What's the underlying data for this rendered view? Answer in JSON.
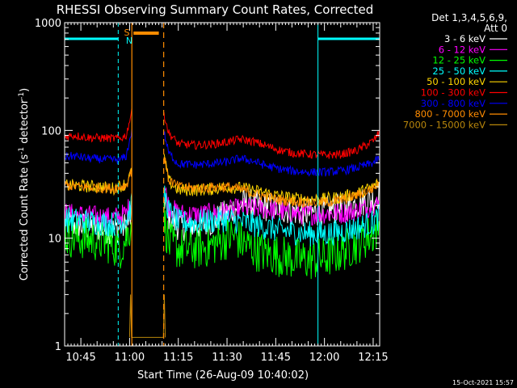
{
  "chart_data": {
    "type": "line",
    "title": "RHESSI Observing Summary Count Rates, Corrected",
    "xlabel": "Start Time (26-Aug-09 10:40:02)",
    "ylabel_parts": [
      "Corrected Count Rate (s",
      "-1",
      " detector",
      "-1",
      ")"
    ],
    "y_scale": "log",
    "ylim": [
      1,
      1000
    ],
    "xlim_minutes_after_1040": [
      0,
      97
    ],
    "x_ticks": [
      {
        "label": "10:45",
        "min": 5
      },
      {
        "label": "11:00",
        "min": 20
      },
      {
        "label": "11:15",
        "min": 35
      },
      {
        "label": "11:30",
        "min": 50
      },
      {
        "label": "11:45",
        "min": 65
      },
      {
        "label": "12:00",
        "min": 80
      },
      {
        "label": "12:15",
        "min": 95
      }
    ],
    "y_ticks": [
      {
        "label": "1",
        "value": 1
      },
      {
        "label": "10",
        "value": 10
      },
      {
        "label": "100",
        "value": 100
      },
      {
        "label": "1000",
        "value": 1000
      }
    ],
    "legend": {
      "header": [
        "Det 1,3,4,5,6,9,",
        "Att 0"
      ],
      "placement": "right",
      "entries": [
        {
          "label": "3 - 6 keV",
          "color": "#ffffff"
        },
        {
          "label": "6 - 12 keV",
          "color": "#ff00ff"
        },
        {
          "label": "12 - 25 keV",
          "color": "#00ff00"
        },
        {
          "label": "25 - 50 keV",
          "color": "#00ffff"
        },
        {
          "label": "50 - 100 keV",
          "color": "#ffd700"
        },
        {
          "label": "100 - 300 keV",
          "color": "#ff0000"
        },
        {
          "label": "300 - 800 keV",
          "color": "#0000ff"
        },
        {
          "label": "800 - 7000 keV",
          "color": "#ff8c00"
        },
        {
          "label": "7000 - 15000 keV",
          "color": "#b8860b"
        }
      ]
    },
    "gap_minutes": [
      20.7,
      30.5
    ],
    "segment_markers": {
      "saa_label": "S",
      "night_label": "N",
      "saa_bar_color": "#ff8c00",
      "night_bar_color": "#00ffff",
      "night_bars_minutes": [
        [
          0,
          16.5
        ],
        [
          78,
          97
        ]
      ],
      "saa_bar_minutes": [
        [
          21.2,
          29
        ]
      ],
      "cyan_lines_minutes": [
        0,
        16.5,
        78,
        97
      ],
      "orange_lines_minutes": [
        20.7,
        30.5
      ]
    },
    "series": [
      {
        "name": "3 - 6 keV",
        "color": "#ffffff",
        "points": [
          [
            0,
            14
          ],
          [
            5,
            13
          ],
          [
            10,
            12.5
          ],
          [
            15,
            12
          ],
          [
            19,
            13
          ],
          [
            20.5,
            16
          ],
          [
            30.5,
            25
          ],
          [
            32,
            16
          ],
          [
            35,
            13
          ],
          [
            40,
            13
          ],
          [
            45,
            14
          ],
          [
            50,
            17
          ],
          [
            55,
            21
          ],
          [
            60,
            20
          ],
          [
            65,
            19
          ],
          [
            70,
            18
          ],
          [
            75,
            17
          ],
          [
            80,
            18
          ],
          [
            85,
            19
          ],
          [
            90,
            21
          ],
          [
            95,
            23
          ],
          [
            97,
            26
          ]
        ]
      },
      {
        "name": "6 - 12 keV",
        "color": "#ff00ff",
        "points": [
          [
            0,
            17
          ],
          [
            5,
            16.5
          ],
          [
            10,
            16
          ],
          [
            15,
            15.5
          ],
          [
            19,
            17
          ],
          [
            20.5,
            22
          ],
          [
            30.5,
            32
          ],
          [
            32,
            20
          ],
          [
            35,
            17
          ],
          [
            40,
            16.5
          ],
          [
            45,
            17
          ],
          [
            50,
            18
          ],
          [
            55,
            19
          ],
          [
            60,
            19
          ],
          [
            65,
            18
          ],
          [
            70,
            17
          ],
          [
            75,
            16.5
          ],
          [
            80,
            17
          ],
          [
            85,
            17
          ],
          [
            90,
            18
          ],
          [
            95,
            20
          ],
          [
            97,
            21
          ]
        ]
      },
      {
        "name": "12 - 25 keV",
        "color": "#00ff00",
        "points": [
          [
            0,
            10.5
          ],
          [
            5,
            10
          ],
          [
            10,
            9.5
          ],
          [
            14,
            9
          ],
          [
            17,
            8
          ],
          [
            19,
            10
          ],
          [
            20.5,
            14
          ],
          [
            30.5,
            16
          ],
          [
            32,
            9
          ],
          [
            35,
            8
          ],
          [
            40,
            8
          ],
          [
            45,
            8.5
          ],
          [
            50,
            10
          ],
          [
            52,
            10.5
          ],
          [
            55,
            9
          ],
          [
            60,
            7.5
          ],
          [
            65,
            7
          ],
          [
            70,
            6.5
          ],
          [
            75,
            6.3
          ],
          [
            80,
            6.5
          ],
          [
            85,
            7.5
          ],
          [
            90,
            9
          ],
          [
            95,
            11
          ],
          [
            97,
            13
          ]
        ]
      },
      {
        "name": "25 - 50 keV",
        "color": "#00ffff",
        "points": [
          [
            0,
            15
          ],
          [
            5,
            14.5
          ],
          [
            10,
            14
          ],
          [
            15,
            13.5
          ],
          [
            19,
            15
          ],
          [
            20.5,
            20
          ],
          [
            30.5,
            28
          ],
          [
            32,
            18
          ],
          [
            35,
            14
          ],
          [
            40,
            14
          ],
          [
            45,
            14.5
          ],
          [
            50,
            15
          ],
          [
            55,
            14
          ],
          [
            60,
            13
          ],
          [
            65,
            12
          ],
          [
            70,
            11.5
          ],
          [
            75,
            11
          ],
          [
            80,
            11
          ],
          [
            85,
            11.5
          ],
          [
            90,
            12.5
          ],
          [
            95,
            14
          ],
          [
            97,
            16
          ]
        ]
      },
      {
        "name": "50 - 100 keV",
        "color": "#ffd700",
        "points": [
          [
            0,
            31
          ],
          [
            5,
            30.5
          ],
          [
            10,
            30
          ],
          [
            15,
            29
          ],
          [
            19,
            32
          ],
          [
            20.5,
            40
          ],
          [
            30.5,
            60
          ],
          [
            32,
            34
          ],
          [
            35,
            28
          ],
          [
            40,
            28
          ],
          [
            45,
            28.5
          ],
          [
            50,
            30
          ],
          [
            55,
            29
          ],
          [
            60,
            27
          ],
          [
            65,
            25
          ],
          [
            70,
            23.5
          ],
          [
            75,
            23
          ],
          [
            80,
            23
          ],
          [
            85,
            24
          ],
          [
            90,
            26
          ],
          [
            95,
            30
          ],
          [
            97,
            33
          ]
        ]
      },
      {
        "name": "100 - 300 keV",
        "color": "#ff0000",
        "points": [
          [
            0,
            88
          ],
          [
            3,
            90
          ],
          [
            7,
            86
          ],
          [
            12,
            85
          ],
          [
            17,
            84
          ],
          [
            19,
            90
          ],
          [
            20.5,
            145
          ],
          [
            30.5,
            150
          ],
          [
            32,
            95
          ],
          [
            35,
            75
          ],
          [
            40,
            73
          ],
          [
            45,
            74
          ],
          [
            50,
            78
          ],
          [
            54,
            83
          ],
          [
            58,
            79
          ],
          [
            62,
            72
          ],
          [
            66,
            66
          ],
          [
            70,
            62
          ],
          [
            75,
            60
          ],
          [
            80,
            59
          ],
          [
            85,
            60
          ],
          [
            90,
            65
          ],
          [
            95,
            80
          ],
          [
            97,
            95
          ]
        ]
      },
      {
        "name": "300 - 800 keV",
        "color": "#0000ff",
        "points": [
          [
            0,
            57
          ],
          [
            3,
            58
          ],
          [
            7,
            55
          ],
          [
            12,
            54
          ],
          [
            17,
            53
          ],
          [
            19,
            58
          ],
          [
            20.5,
            95
          ],
          [
            30.5,
            100
          ],
          [
            32,
            62
          ],
          [
            35,
            49
          ],
          [
            40,
            48
          ],
          [
            45,
            49
          ],
          [
            50,
            51
          ],
          [
            54,
            55
          ],
          [
            58,
            52
          ],
          [
            62,
            47
          ],
          [
            66,
            44
          ],
          [
            70,
            42
          ],
          [
            75,
            41
          ],
          [
            80,
            41
          ],
          [
            85,
            42
          ],
          [
            90,
            45
          ],
          [
            95,
            50
          ],
          [
            97,
            55
          ]
        ]
      },
      {
        "name": "800 - 7000 keV",
        "color": "#ff8c00",
        "points": [
          [
            0,
            31
          ],
          [
            5,
            30
          ],
          [
            10,
            29.5
          ],
          [
            15,
            29
          ],
          [
            19,
            31
          ],
          [
            20.5,
            42
          ],
          [
            30.5,
            60
          ],
          [
            32,
            35
          ],
          [
            35,
            30
          ],
          [
            40,
            29
          ],
          [
            45,
            29.5
          ],
          [
            50,
            30
          ],
          [
            55,
            28
          ],
          [
            60,
            25
          ],
          [
            65,
            23
          ],
          [
            70,
            22
          ],
          [
            75,
            21.5
          ],
          [
            80,
            21.5
          ],
          [
            85,
            22.5
          ],
          [
            90,
            25
          ],
          [
            95,
            29
          ],
          [
            97,
            33
          ]
        ]
      },
      {
        "name": "7000 - 15000 keV",
        "color": "#b8860b",
        "points": [
          [
            20,
            1.2
          ],
          [
            20.3,
            3
          ],
          [
            20.6,
            1.2
          ],
          [
            30.4,
            1.2
          ],
          [
            30.7,
            3
          ],
          [
            31,
            1.2
          ]
        ]
      }
    ],
    "footer_timestamp": "15-Oct-2021 15:57"
  }
}
